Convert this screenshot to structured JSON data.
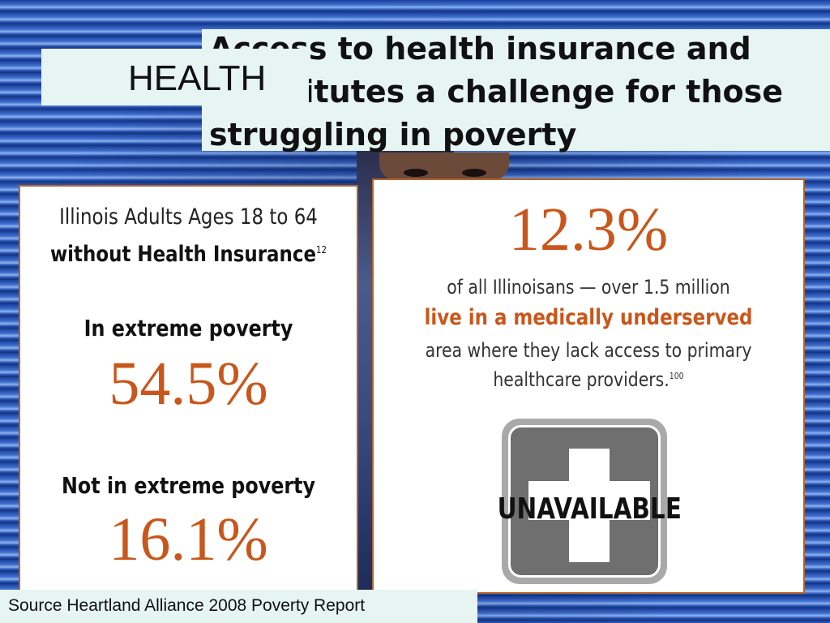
{
  "slide": {
    "section_label": "HEALTH",
    "title": "Access to health insurance and constitutes a challenge for those struggling in poverty",
    "source": "Source Heartland Alliance 2008 Poverty Report"
  },
  "left_panel": {
    "heading_line1": "Illinois Adults Ages 18 to 64",
    "heading_line2": "without Health Insurance",
    "heading_sup": "12",
    "group1_label": "In extreme poverty",
    "group1_value": "54.5%",
    "group2_label": "Not in extreme poverty",
    "group2_value": "16.1%"
  },
  "right_panel": {
    "stat": "12.3%",
    "line1": "of all Illinoisans — over 1.5 million",
    "line2": "live in a medically underserved",
    "line3": "area where they lack access to primary",
    "line4": "healthcare providers.",
    "line4_sup": "100",
    "sign_text": "UNAVAILABLE",
    "sign_icon": "medical-cross-icon"
  },
  "colors": {
    "accent_orange": "#c8571c",
    "panel_border": "#b5642a",
    "title_box": "#e6f5f2",
    "background_blue": "#2350b0"
  }
}
